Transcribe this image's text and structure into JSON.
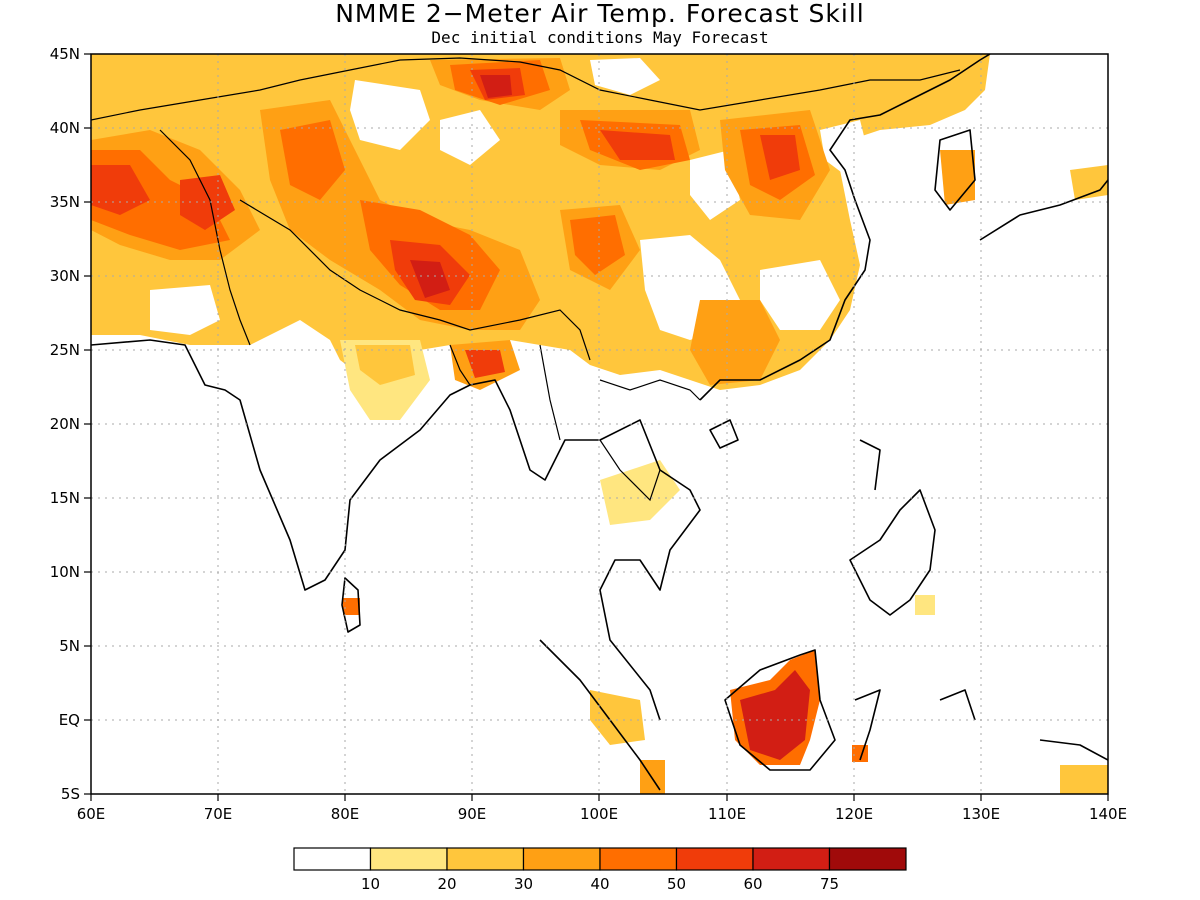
{
  "title": "NMME 2−Meter Air Temp. Forecast Skill",
  "subtitle": "Dec initial conditions  May Forecast",
  "map": {
    "region": "South and East Asia",
    "lon_range": [
      60,
      140
    ],
    "lat_range": [
      -5,
      45
    ],
    "grid": true,
    "x_ticks": [
      "60E",
      "70E",
      "80E",
      "90E",
      "100E",
      "110E",
      "120E",
      "130E",
      "140E"
    ],
    "y_ticks": [
      "45N",
      "40N",
      "35N",
      "30N",
      "25N",
      "20N",
      "15N",
      "10N",
      "5N",
      "EQ",
      "5S"
    ]
  },
  "colorbar": {
    "colors": [
      "#ffffff",
      "#ffe680",
      "#ffc63c",
      "#ffa014",
      "#ff6e00",
      "#f03c0a",
      "#d21e14",
      "#a00a0a"
    ],
    "labels": [
      "10",
      "20",
      "30",
      "40",
      "50",
      "60",
      "75"
    ]
  }
}
